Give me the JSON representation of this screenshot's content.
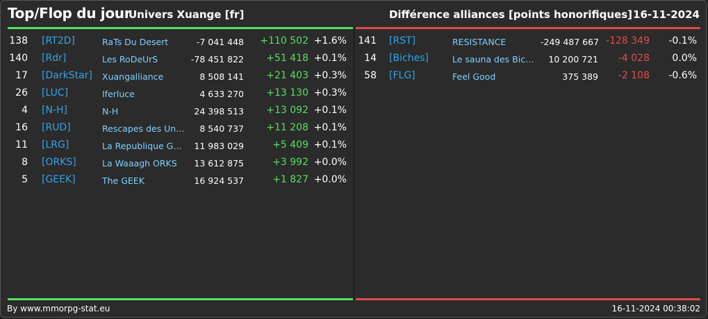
{
  "header": {
    "title": "Top/Flop du jour",
    "universe": "Univers Xuange [fr]",
    "category": "Différence alliances [points honorifiques]",
    "date": "16-11-2024"
  },
  "colors": {
    "top": "#56e060",
    "flop": "#dd4b4b",
    "tag": "#33a3e8",
    "name": "#7fd0ff"
  },
  "top": [
    {
      "rank": "138",
      "tag": "[RT2D]",
      "name": "RaTs Du Desert",
      "points": "-7 041 448",
      "diff": "+110 502",
      "pct": "+1.6%"
    },
    {
      "rank": "140",
      "tag": "[Rdr]",
      "name": "Les RoDeUrS",
      "points": "-78 451 822",
      "diff": "+51 418",
      "pct": "+0.1%"
    },
    {
      "rank": "17",
      "tag": "[DarkStar]",
      "name": "Xuangalliance",
      "points": "8 508 141",
      "diff": "+21 403",
      "pct": "+0.3%"
    },
    {
      "rank": "26",
      "tag": "[LUC]",
      "name": "Iferluce",
      "points": "4 633 270",
      "diff": "+13 130",
      "pct": "+0.3%"
    },
    {
      "rank": "4",
      "tag": "[N-H]",
      "name": "N-H",
      "points": "24 398 513",
      "diff": "+13 092",
      "pct": "+0.1%"
    },
    {
      "rank": "16",
      "tag": "[RUD]",
      "name": "Rescapes des Univ...",
      "points": "8 540 737",
      "diff": "+11 208",
      "pct": "+0.1%"
    },
    {
      "rank": "11",
      "tag": "[LRG]",
      "name": "La Republique Gala...",
      "points": "11 983 029",
      "diff": "+5 409",
      "pct": "+0.1%"
    },
    {
      "rank": "8",
      "tag": "[ORKS]",
      "name": "La Waaagh ORKS",
      "points": "13 612 875",
      "diff": "+3 992",
      "pct": "+0.0%"
    },
    {
      "rank": "5",
      "tag": "[GEEK]",
      "name": "The GEEK",
      "points": "16 924 537",
      "diff": "+1 827",
      "pct": "+0.0%"
    }
  ],
  "flop": [
    {
      "rank": "141",
      "tag": "[RST]",
      "name": "RESISTANCE",
      "points": "-249 487 667",
      "diff": "-128 349",
      "pct": "-0.1%"
    },
    {
      "rank": "14",
      "tag": "[Biches]",
      "name": "Le sauna des Biches",
      "points": "10 200 721",
      "diff": "-4 028",
      "pct": "0.0%"
    },
    {
      "rank": "58",
      "tag": "[FLG]",
      "name": "Feel Good",
      "points": "375 389",
      "diff": "-2 108",
      "pct": "-0.6%"
    }
  ],
  "footer": {
    "credit": "By www.mmorpg-stat.eu",
    "timestamp": "16-11-2024 00:38:02"
  }
}
